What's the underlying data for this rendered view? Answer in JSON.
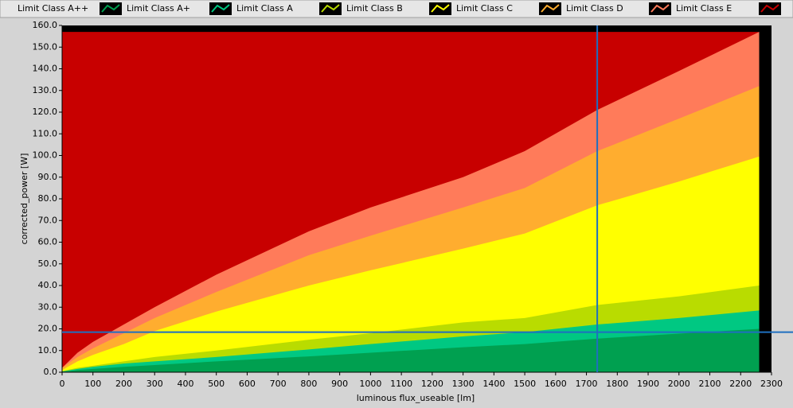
{
  "chart_data": {
    "type": "area",
    "x_label": "luminous flux_useable [lm]",
    "y_label": "corrected_power [W]",
    "x": [
      0,
      50,
      100,
      200,
      300,
      500,
      800,
      1000,
      1300,
      1500,
      1735,
      2000,
      2260
    ],
    "series": [
      {
        "name": "Limit Class A++",
        "values": [
          null,
          null,
          null,
          null,
          null,
          null,
          null,
          null,
          null,
          null,
          null,
          null,
          null
        ]
      },
      {
        "name": "Limit Class A+",
        "color": "#00a050",
        "values": [
          0.2,
          1,
          1.5,
          2.5,
          3.3,
          5,
          7.3,
          9,
          11.5,
          13,
          15.5,
          17.8,
          20
        ]
      },
      {
        "name": "Limit Class A",
        "color": "#00c882",
        "values": [
          0.3,
          1.5,
          2.5,
          4,
          5,
          7,
          10.5,
          13,
          16.5,
          18.5,
          22,
          25,
          28.5
        ]
      },
      {
        "name": "Limit Class B",
        "color": "#b9dc00",
        "values": [
          0.5,
          2,
          3,
          5,
          7,
          10,
          15,
          18,
          23,
          25,
          31,
          35,
          40
        ]
      },
      {
        "name": "Limit Class C",
        "color": "#ffff00",
        "values": [
          1,
          5,
          8,
          13,
          19,
          28,
          40,
          47,
          57,
          64,
          77,
          88,
          99.5
        ]
      },
      {
        "name": "Limit Class D",
        "color": "#ffad2f",
        "values": [
          2,
          7,
          11,
          18,
          25,
          37,
          54,
          63,
          76,
          85,
          102,
          117,
          132
        ]
      },
      {
        "name": "Limit Class E",
        "color": "#ff7b5a",
        "values": [
          2,
          9,
          14,
          22,
          30,
          45,
          65,
          76,
          90,
          102,
          121,
          139,
          157
        ]
      },
      {
        "name": null,
        "color": "#c80000",
        "values": [
          157,
          157,
          157,
          157,
          157,
          157,
          157,
          157,
          157,
          157,
          157,
          157,
          157
        ]
      }
    ],
    "xlim": [
      0,
      2300
    ],
    "xticks": [
      0,
      100,
      200,
      300,
      400,
      500,
      600,
      700,
      800,
      900,
      1000,
      1100,
      1200,
      1300,
      1400,
      1500,
      1600,
      1700,
      1800,
      1900,
      2000,
      2100,
      2200,
      2300
    ],
    "ylim": [
      0,
      160
    ],
    "yticks": [
      {
        "value": 0,
        "label": "0.0"
      },
      {
        "value": 10,
        "label": "10.0"
      },
      {
        "value": 20,
        "label": "20.0"
      },
      {
        "value": 30,
        "label": "30.0"
      },
      {
        "value": 40,
        "label": "40.0"
      },
      {
        "value": 50,
        "label": "50.0"
      },
      {
        "value": 60,
        "label": "60.0"
      },
      {
        "value": 70,
        "label": "70.0"
      },
      {
        "value": 80,
        "label": "80.0"
      },
      {
        "value": 90,
        "label": "90.0"
      },
      {
        "value": 100,
        "label": "100.0"
      },
      {
        "value": 110,
        "label": "110.0"
      },
      {
        "value": 120,
        "label": "120.0"
      },
      {
        "value": 130,
        "label": "130.0"
      },
      {
        "value": 140,
        "label": "140.0"
      },
      {
        "value": 150,
        "label": "150.0"
      },
      {
        "value": 160,
        "label": "160.0"
      }
    ],
    "cursor": {
      "x": 1735,
      "y": 18.5,
      "color": "#1f6fc0"
    }
  }
}
